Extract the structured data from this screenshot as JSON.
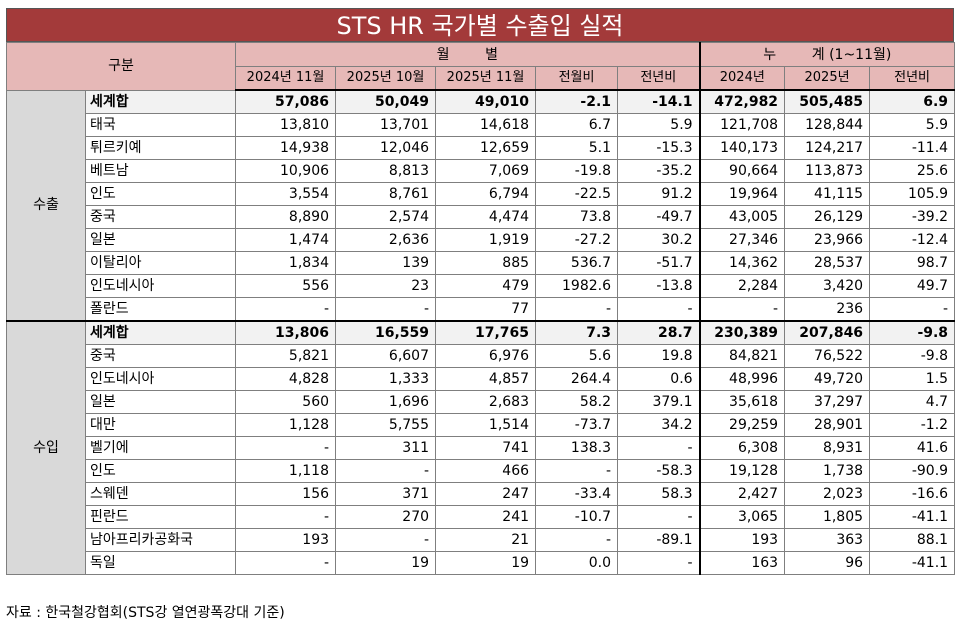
{
  "title": "STS HR 국가별 수출입 실적",
  "header": {
    "category": "구분",
    "monthly_group": "월        별",
    "cumulative_group": "누        계 (1~11월)",
    "columns": [
      "2024년 11월",
      "2025년 10월",
      "2025년 11월",
      "전월비",
      "전년비",
      "2024년",
      "2025년",
      "전년비"
    ]
  },
  "sections": [
    {
      "name": "수출",
      "rows": [
        {
          "label": "세계합",
          "total": true,
          "v": [
            "57,086",
            "50,049",
            "49,010",
            "-2.1",
            "-14.1",
            "472,982",
            "505,485",
            "6.9"
          ]
        },
        {
          "label": "태국",
          "v": [
            "13,810",
            "13,701",
            "14,618",
            "6.7",
            "5.9",
            "121,708",
            "128,844",
            "5.9"
          ]
        },
        {
          "label": "튀르키예",
          "v": [
            "14,938",
            "12,046",
            "12,659",
            "5.1",
            "-15.3",
            "140,173",
            "124,217",
            "-11.4"
          ]
        },
        {
          "label": "베트남",
          "v": [
            "10,906",
            "8,813",
            "7,069",
            "-19.8",
            "-35.2",
            "90,664",
            "113,873",
            "25.6"
          ]
        },
        {
          "label": "인도",
          "v": [
            "3,554",
            "8,761",
            "6,794",
            "-22.5",
            "91.2",
            "19,964",
            "41,115",
            "105.9"
          ]
        },
        {
          "label": "중국",
          "v": [
            "8,890",
            "2,574",
            "4,474",
            "73.8",
            "-49.7",
            "43,005",
            "26,129",
            "-39.2"
          ]
        },
        {
          "label": "일본",
          "v": [
            "1,474",
            "2,636",
            "1,919",
            "-27.2",
            "30.2",
            "27,346",
            "23,966",
            "-12.4"
          ]
        },
        {
          "label": "이탈리아",
          "v": [
            "1,834",
            "139",
            "885",
            "536.7",
            "-51.7",
            "14,362",
            "28,537",
            "98.7"
          ]
        },
        {
          "label": "인도네시아",
          "v": [
            "556",
            "23",
            "479",
            "1982.6",
            "-13.8",
            "2,284",
            "3,420",
            "49.7"
          ]
        },
        {
          "label": "폴란드",
          "v": [
            "-",
            "-",
            "77",
            "-",
            "-",
            "-",
            "236",
            "-"
          ]
        }
      ]
    },
    {
      "name": "수입",
      "rows": [
        {
          "label": "세계합",
          "total": true,
          "v": [
            "13,806",
            "16,559",
            "17,765",
            "7.3",
            "28.7",
            "230,389",
            "207,846",
            "-9.8"
          ]
        },
        {
          "label": "중국",
          "v": [
            "5,821",
            "6,607",
            "6,976",
            "5.6",
            "19.8",
            "84,821",
            "76,522",
            "-9.8"
          ]
        },
        {
          "label": "인도네시아",
          "v": [
            "4,828",
            "1,333",
            "4,857",
            "264.4",
            "0.6",
            "48,996",
            "49,720",
            "1.5"
          ]
        },
        {
          "label": "일본",
          "v": [
            "560",
            "1,696",
            "2,683",
            "58.2",
            "379.1",
            "35,618",
            "37,297",
            "4.7"
          ]
        },
        {
          "label": "대만",
          "v": [
            "1,128",
            "5,755",
            "1,514",
            "-73.7",
            "34.2",
            "29,259",
            "28,901",
            "-1.2"
          ]
        },
        {
          "label": "벨기에",
          "v": [
            "-",
            "311",
            "741",
            "138.3",
            "-",
            "6,308",
            "8,931",
            "41.6"
          ]
        },
        {
          "label": "인도",
          "v": [
            "1,118",
            "-",
            "466",
            "-",
            "-58.3",
            "19,128",
            "1,738",
            "-90.9"
          ]
        },
        {
          "label": "스웨덴",
          "v": [
            "156",
            "371",
            "247",
            "-33.4",
            "58.3",
            "2,427",
            "2,023",
            "-16.6"
          ]
        },
        {
          "label": "핀란드",
          "v": [
            "-",
            "270",
            "241",
            "-10.7",
            "-",
            "3,065",
            "1,805",
            "-41.1"
          ]
        },
        {
          "label": "남아프리카공화국",
          "v": [
            "193",
            "-",
            "21",
            "-",
            "-89.1",
            "193",
            "363",
            "88.1"
          ]
        },
        {
          "label": "독일",
          "v": [
            "-",
            "19",
            "19",
            "0.0",
            "-",
            "163",
            "96",
            "-41.1"
          ]
        }
      ]
    }
  ],
  "source": "자료 : 한국철강협회(STS강 열연광폭강대 기준)",
  "colors": {
    "title_bg": "#a33a3a",
    "header_bg": "#e6b8b7",
    "group_bg": "#d9d9d9",
    "total_bg": "#f2f2f2"
  }
}
